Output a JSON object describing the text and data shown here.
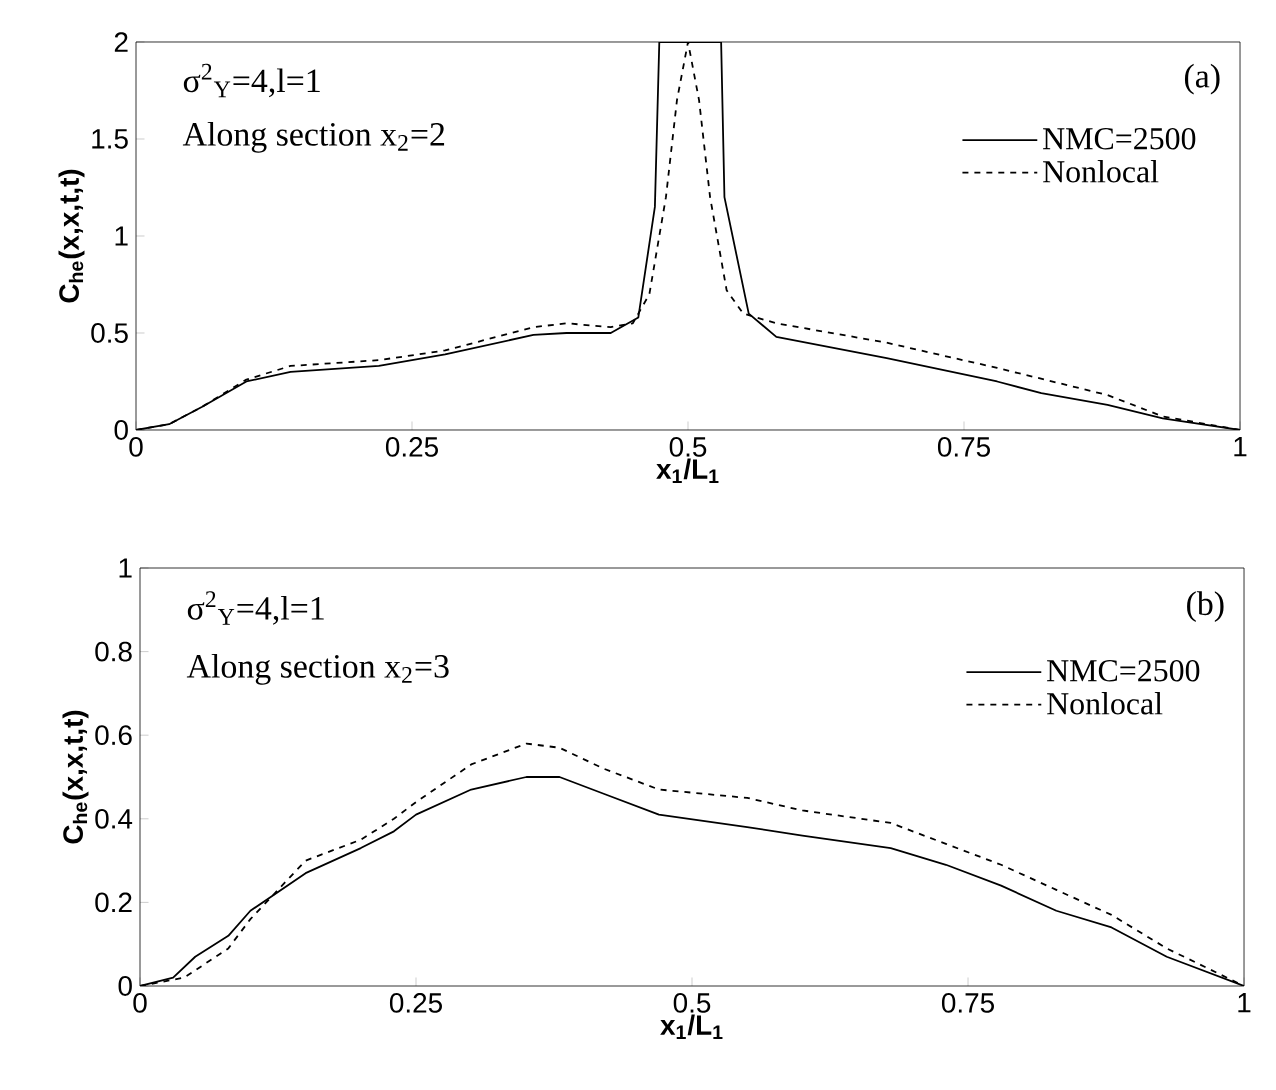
{
  "chart_data": [
    {
      "type": "line",
      "xlabel": "x$_{1}$/L$_{1}$",
      "ylabel": "C$_{he}$(x,x,t,t)",
      "annotations": [
        "σ$^{2}$$_{Y}$=4,l=1",
        "Along section x$_{2}$=2",
        "(a)"
      ],
      "xlim": [
        0,
        1
      ],
      "ylim": [
        0,
        2
      ],
      "xticks": [
        0,
        0.25,
        0.5,
        0.75,
        1
      ],
      "yticks": [
        0,
        0.5,
        1,
        1.5,
        2
      ],
      "legend": "top right",
      "grid": false,
      "series": [
        {
          "name": "NMC=2500",
          "color": "#000000",
          "line_style": "solid",
          "x": [
            0,
            0.03,
            0.06,
            0.1,
            0.14,
            0.22,
            0.28,
            0.36,
            0.39,
            0.43,
            0.455,
            0.47,
            0.474,
            0.53,
            0.533,
            0.555,
            0.58,
            0.68,
            0.78,
            0.82,
            0.88,
            0.93,
            1
          ],
          "values": [
            0,
            0.03,
            0.12,
            0.25,
            0.3,
            0.33,
            0.39,
            0.49,
            0.5,
            0.5,
            0.58,
            1.15,
            2,
            2,
            1.2,
            0.6,
            0.48,
            0.37,
            0.25,
            0.19,
            0.13,
            0.06,
            0
          ]
        },
        {
          "name": "Nonlocal",
          "color": "#000000",
          "line_style": "dashed",
          "x": [
            0,
            0.03,
            0.06,
            0.1,
            0.14,
            0.22,
            0.28,
            0.36,
            0.39,
            0.43,
            0.45,
            0.465,
            0.48,
            0.49,
            0.5,
            0.51,
            0.52,
            0.535,
            0.55,
            0.58,
            0.68,
            0.78,
            0.88,
            0.93,
            1
          ],
          "values": [
            0,
            0.03,
            0.12,
            0.26,
            0.33,
            0.36,
            0.41,
            0.53,
            0.55,
            0.53,
            0.55,
            0.7,
            1.2,
            1.7,
            2,
            1.7,
            1.2,
            0.72,
            0.6,
            0.55,
            0.45,
            0.32,
            0.18,
            0.07,
            0
          ]
        }
      ]
    },
    {
      "type": "line",
      "xlabel": "x$_{1}$/L$_{1}$",
      "ylabel": "C$_{he}$(x,x,t,t)",
      "annotations": [
        "σ$^{2}$$_{Y}$=4,l=1",
        "Along section x$_{2}$=3",
        "(b)"
      ],
      "xlim": [
        0,
        1
      ],
      "ylim": [
        0,
        1
      ],
      "xticks": [
        0,
        0.25,
        0.5,
        0.75,
        1
      ],
      "yticks": [
        0,
        0.2,
        0.4,
        0.6,
        0.8,
        1
      ],
      "legend": "top right",
      "grid": false,
      "series": [
        {
          "name": "NMC=2500",
          "color": "#000000",
          "line_style": "solid",
          "x": [
            0,
            0.03,
            0.05,
            0.08,
            0.1,
            0.15,
            0.2,
            0.23,
            0.25,
            0.3,
            0.35,
            0.38,
            0.42,
            0.47,
            0.55,
            0.6,
            0.68,
            0.73,
            0.78,
            0.83,
            0.88,
            0.93,
            1
          ],
          "values": [
            0,
            0.02,
            0.07,
            0.12,
            0.18,
            0.27,
            0.33,
            0.37,
            0.41,
            0.47,
            0.5,
            0.5,
            0.46,
            0.41,
            0.38,
            0.36,
            0.33,
            0.29,
            0.24,
            0.18,
            0.14,
            0.07,
            0
          ]
        },
        {
          "name": "Nonlocal",
          "color": "#000000",
          "line_style": "dashed",
          "x": [
            0,
            0.04,
            0.08,
            0.1,
            0.15,
            0.2,
            0.23,
            0.25,
            0.3,
            0.35,
            0.38,
            0.42,
            0.47,
            0.55,
            0.6,
            0.68,
            0.73,
            0.78,
            0.83,
            0.88,
            0.93,
            1
          ],
          "values": [
            0,
            0.02,
            0.09,
            0.16,
            0.3,
            0.35,
            0.4,
            0.44,
            0.53,
            0.58,
            0.57,
            0.52,
            0.47,
            0.45,
            0.42,
            0.39,
            0.34,
            0.29,
            0.23,
            0.17,
            0.09,
            0
          ]
        }
      ]
    }
  ]
}
